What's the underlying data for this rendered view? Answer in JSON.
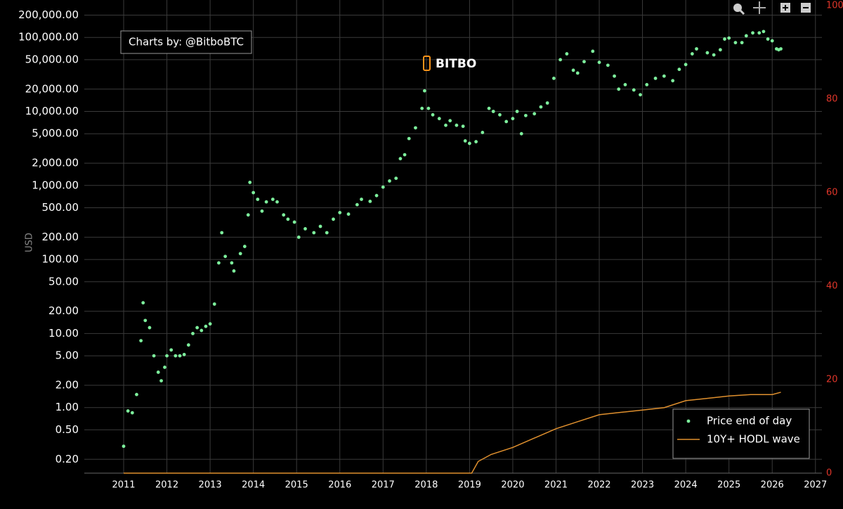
{
  "chart_data": {
    "type": "scatter",
    "annotations": [
      "Charts by: @BitboBTC",
      "BITBO"
    ],
    "ylabel": "USD",
    "log_y": true,
    "grid": true,
    "legend": "bottom-right",
    "xlim": [
      2010.09,
      2027.15
    ],
    "xticks": [
      2011,
      2012,
      2013,
      2014,
      2015,
      2016,
      2017,
      2018,
      2019,
      2020,
      2021,
      2022,
      2023,
      2024,
      2025,
      2026,
      2027
    ],
    "ylim": [
      0.13,
      320000
    ],
    "yticks": [
      {
        "value": 0.2,
        "label": "0.20"
      },
      {
        "value": 0.5,
        "label": "0.50"
      },
      {
        "value": 1,
        "label": "1.00"
      },
      {
        "value": 2,
        "label": "2.00"
      },
      {
        "value": 5,
        "label": "5.00"
      },
      {
        "value": 10,
        "label": "10.00"
      },
      {
        "value": 20,
        "label": "20.00"
      },
      {
        "value": 50,
        "label": "50.00"
      },
      {
        "value": 100,
        "label": "100.00"
      },
      {
        "value": 200,
        "label": "200.00"
      },
      {
        "value": 500,
        "label": "500.00"
      },
      {
        "value": 1000,
        "label": "1,000.00"
      },
      {
        "value": 2000,
        "label": "2,000.00"
      },
      {
        "value": 5000,
        "label": "5,000.00"
      },
      {
        "value": 10000,
        "label": "10,000.00"
      },
      {
        "value": 20000,
        "label": "20,000.00"
      },
      {
        "value": 50000,
        "label": "50,000.00"
      },
      {
        "value": 100000,
        "label": "100,000.00"
      },
      {
        "value": 200000,
        "label": "200,000.00"
      }
    ],
    "y2lim": [
      0,
      101.2
    ],
    "y2ticks": [
      0,
      20,
      40,
      60,
      80,
      100
    ],
    "series": [
      {
        "name": "Price end of day",
        "type": "scatter",
        "color": "#7def9c",
        "x": [
          2011.0,
          2011.1,
          2011.2,
          2011.3,
          2011.4,
          2011.45,
          2011.5,
          2011.6,
          2011.7,
          2011.8,
          2011.87,
          2011.95,
          2012.0,
          2012.1,
          2012.2,
          2012.3,
          2012.4,
          2012.5,
          2012.6,
          2012.7,
          2012.8,
          2012.9,
          2013.0,
          2013.1,
          2013.2,
          2013.27,
          2013.35,
          2013.5,
          2013.55,
          2013.7,
          2013.8,
          2013.88,
          2013.92,
          2014.0,
          2014.1,
          2014.2,
          2014.3,
          2014.45,
          2014.55,
          2014.7,
          2014.8,
          2014.95,
          2015.05,
          2015.2,
          2015.4,
          2015.55,
          2015.7,
          2015.85,
          2016.0,
          2016.2,
          2016.4,
          2016.5,
          2016.7,
          2016.85,
          2017.0,
          2017.15,
          2017.3,
          2017.4,
          2017.5,
          2017.6,
          2017.75,
          2017.9,
          2017.96,
          2018.05,
          2018.15,
          2018.3,
          2018.45,
          2018.55,
          2018.7,
          2018.85,
          2018.9,
          2019.0,
          2019.15,
          2019.3,
          2019.45,
          2019.55,
          2019.7,
          2019.85,
          2020.0,
          2020.1,
          2020.2,
          2020.3,
          2020.5,
          2020.65,
          2020.8,
          2020.95,
          2021.1,
          2021.25,
          2021.4,
          2021.5,
          2021.65,
          2021.85,
          2022.0,
          2022.2,
          2022.35,
          2022.45,
          2022.6,
          2022.8,
          2022.95,
          2023.1,
          2023.3,
          2023.5,
          2023.7,
          2023.85,
          2024.0,
          2024.15,
          2024.25,
          2024.5,
          2024.65,
          2024.8,
          2024.9,
          2025.0,
          2025.15,
          2025.3,
          2025.4,
          2025.55,
          2025.7,
          2025.8,
          2025.9,
          2026.0,
          2026.1,
          2026.15,
          2026.2
        ],
        "values": [
          0.3,
          0.9,
          0.85,
          1.5,
          8,
          26,
          15,
          12,
          5,
          3,
          2.3,
          3.5,
          5,
          6,
          5,
          5,
          5.2,
          7,
          10,
          12,
          11,
          12.5,
          13.5,
          25,
          90,
          230,
          110,
          90,
          70,
          120,
          150,
          400,
          1100,
          800,
          650,
          450,
          600,
          650,
          600,
          400,
          350,
          320,
          200,
          260,
          230,
          280,
          230,
          350,
          430,
          410,
          550,
          650,
          610,
          730,
          950,
          1150,
          1250,
          2300,
          2600,
          4300,
          6000,
          11000,
          19000,
          11000,
          9000,
          8000,
          6500,
          7500,
          6500,
          6300,
          4000,
          3700,
          3900,
          5200,
          11000,
          10000,
          9000,
          7300,
          8000,
          10000,
          5000,
          8800,
          9300,
          11500,
          13000,
          28000,
          50000,
          60000,
          36000,
          33000,
          47000,
          65000,
          46000,
          42000,
          30000,
          20000,
          23000,
          19500,
          16800,
          23000,
          28000,
          30000,
          26000,
          37000,
          43000,
          60000,
          70000,
          62000,
          58000,
          68000,
          95000,
          98000,
          85000,
          85000,
          105000,
          115000,
          115000,
          120000,
          95000,
          90000,
          70000,
          68000,
          70000
        ]
      },
      {
        "name": "10Y+ HODL wave",
        "type": "line",
        "axis": "y2",
        "color": "#e0902e",
        "x": [
          2011.0,
          2019.05,
          2019.2,
          2019.5,
          2020.0,
          2020.5,
          2021.0,
          2021.5,
          2022.0,
          2022.5,
          2023.0,
          2023.5,
          2024.0,
          2024.5,
          2025.0,
          2025.5,
          2026.0,
          2026.2
        ],
        "values": [
          0,
          0,
          2.5,
          4,
          5.5,
          7.5,
          9.5,
          11,
          12.5,
          13,
          13.5,
          14,
          15.5,
          16,
          16.5,
          16.8,
          16.8,
          17.3
        ]
      }
    ]
  }
}
